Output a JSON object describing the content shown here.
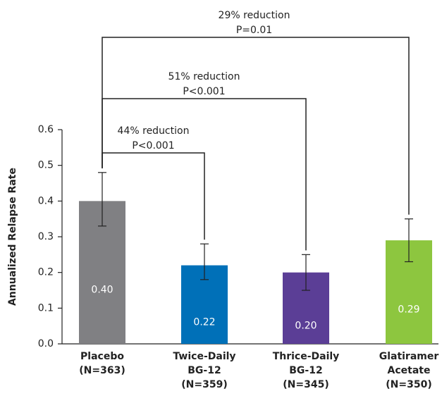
{
  "chart_data": {
    "type": "bar",
    "ylabel": "Annualized Relapse Rate",
    "categories": [
      [
        "Placebo",
        "(N=363)"
      ],
      [
        "Twice-Daily",
        "BG-12",
        "(N=359)"
      ],
      [
        "Thrice-Daily",
        "BG-12",
        "(N=345)"
      ],
      [
        "Glatiramer",
        "Acetate",
        "(N=350)"
      ]
    ],
    "values": [
      0.4,
      0.22,
      0.2,
      0.29
    ],
    "value_labels": [
      "0.40",
      "0.22",
      "0.20",
      "0.29"
    ],
    "error_low": [
      0.33,
      0.18,
      0.15,
      0.23
    ],
    "error_high": [
      0.48,
      0.28,
      0.25,
      0.35
    ],
    "colors": [
      "#808083",
      "#0070b8",
      "#5b3e96",
      "#8dc63f"
    ],
    "ylim": [
      0,
      0.6
    ],
    "yticks": [
      {
        "value": 0,
        "label": "0.0"
      },
      0.1,
      0.2,
      0.3,
      0.4,
      0.5,
      0.6
    ],
    "comparisons": [
      {
        "label": "44% reduction",
        "p": "P<0.001"
      },
      {
        "label": "51% reduction",
        "p": "P<0.001"
      },
      {
        "label": "29% reduction",
        "p": "P=0.01"
      }
    ]
  }
}
